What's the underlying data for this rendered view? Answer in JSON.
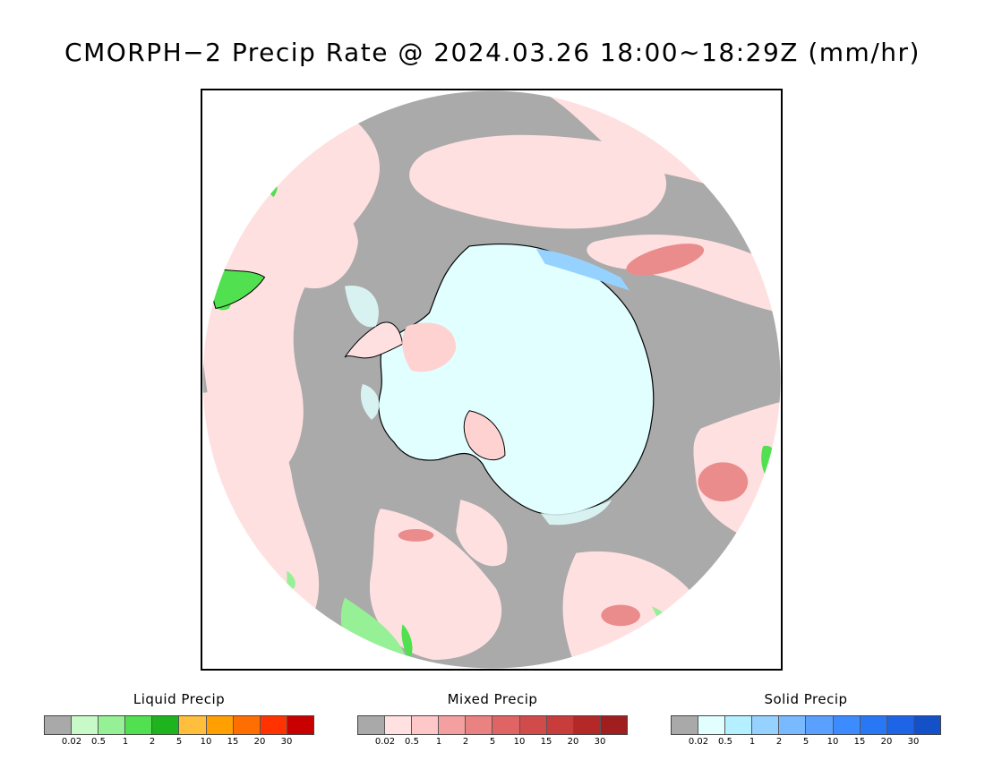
{
  "title": "CMORPH−2 Precip Rate @ 2024.03.26 18:00∼18:29Z (mm/hr)",
  "map": {
    "projection": "south polar stereographic",
    "no_data_color": "#aaaaaa",
    "ocean_color": "#ffffff"
  },
  "legends": [
    {
      "title": "Liquid Precip",
      "colors": [
        "#a9a9a9",
        "#c8fac8",
        "#96f096",
        "#50e050",
        "#1eb41e",
        "#ffbe3c",
        "#ffa000",
        "#ff6e00",
        "#ff3200",
        "#c80000"
      ],
      "ticks": [
        "0.02",
        "0.5",
        "1",
        "2",
        "5",
        "10",
        "15",
        "20",
        "30"
      ]
    },
    {
      "title": "Mixed Precip",
      "colors": [
        "#a9a9a9",
        "#ffe1e1",
        "#ffc8c8",
        "#f5a0a0",
        "#eb8282",
        "#e16464",
        "#d24b4b",
        "#c83c3c",
        "#b42828",
        "#a01e1e"
      ],
      "ticks": [
        "0.02",
        "0.5",
        "1",
        "2",
        "5",
        "10",
        "15",
        "20",
        "30"
      ]
    },
    {
      "title": "Solid Precip",
      "colors": [
        "#a9a9a9",
        "#e1ffff",
        "#b4f0ff",
        "#96d2ff",
        "#78b9ff",
        "#5aa0ff",
        "#3c8cff",
        "#2878f5",
        "#1e64e6",
        "#1450c8"
      ],
      "ticks": [
        "0.02",
        "0.5",
        "1",
        "2",
        "5",
        "10",
        "15",
        "20",
        "30"
      ]
    }
  ]
}
